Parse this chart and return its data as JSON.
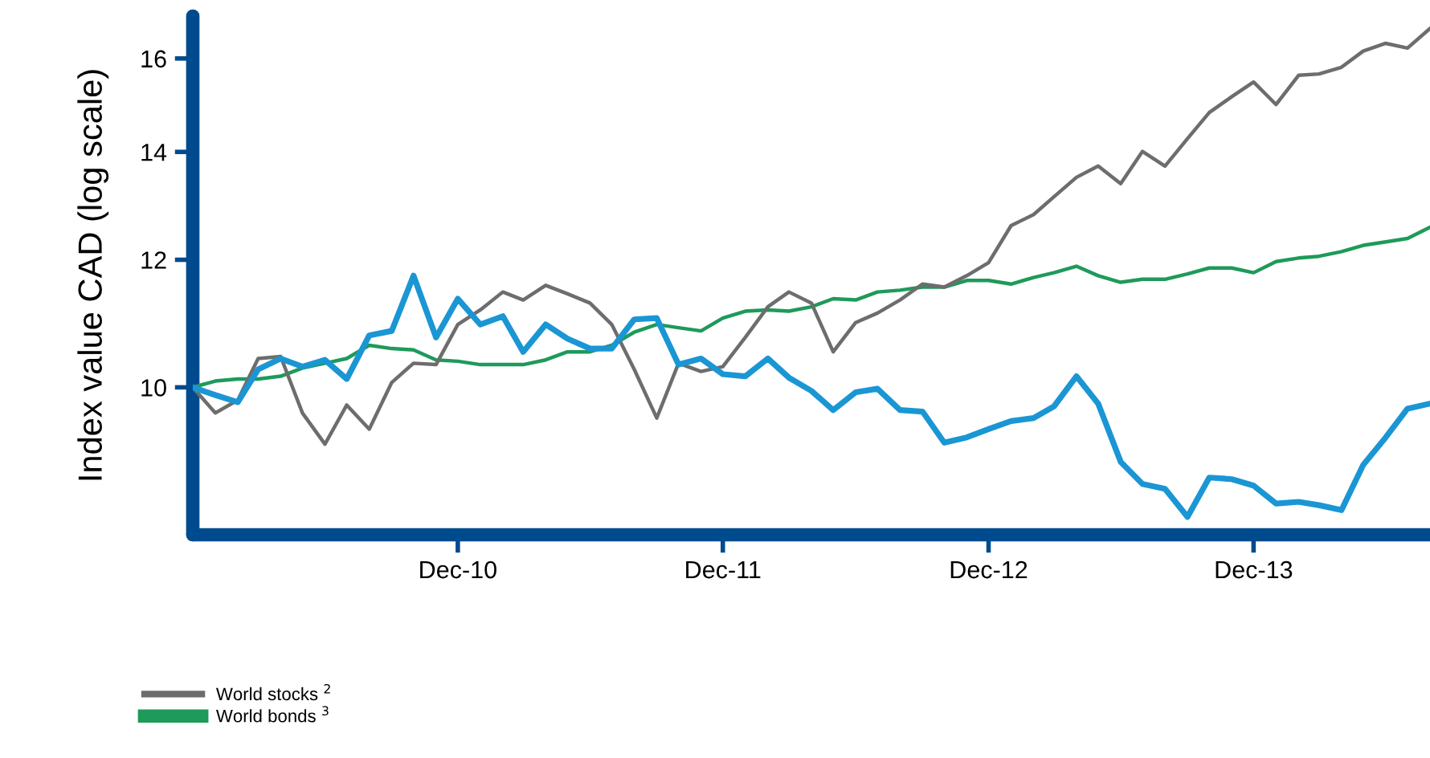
{
  "chart_data": {
    "type": "line",
    "ylabel": "Index value CAD (log scale)",
    "log": true,
    "ylim": [
      8.1,
      17.0
    ],
    "yticks": [
      10,
      12,
      14,
      16
    ],
    "xlim": [
      "2009-12",
      "2014-08"
    ],
    "xticks": [
      {
        "value": "2010-12",
        "label": "Dec-10"
      },
      {
        "value": "2011-12",
        "label": "Dec-11"
      },
      {
        "value": "2012-12",
        "label": "Dec-12"
      },
      {
        "value": "2013-12",
        "label": "Dec-13"
      }
    ],
    "x": [
      "2009-12",
      "2010-01",
      "2010-02",
      "2010-03",
      "2010-04",
      "2010-05",
      "2010-06",
      "2010-07",
      "2010-08",
      "2010-09",
      "2010-10",
      "2010-11",
      "2010-12",
      "2011-01",
      "2011-02",
      "2011-03",
      "2011-04",
      "2011-05",
      "2011-06",
      "2011-07",
      "2011-08",
      "2011-09",
      "2011-10",
      "2011-11",
      "2011-12",
      "2012-01",
      "2012-02",
      "2012-03",
      "2012-04",
      "2012-05",
      "2012-06",
      "2012-07",
      "2012-08",
      "2012-09",
      "2012-10",
      "2012-11",
      "2012-12",
      "2013-01",
      "2013-02",
      "2013-03",
      "2013-04",
      "2013-05",
      "2013-06",
      "2013-07",
      "2013-08",
      "2013-09",
      "2013-10",
      "2013-11",
      "2013-12",
      "2014-01",
      "2014-02",
      "2014-03",
      "2014-04",
      "2014-05",
      "2014-06",
      "2014-07",
      "2014-08"
    ],
    "grid": false,
    "legend": "bottom left",
    "marker": "none",
    "line_style": "solid",
    "series": [
      {
        "color": "#1a96d4",
        "values": [
          10.0,
          9.89,
          9.79,
          10.26,
          10.42,
          10.3,
          10.4,
          10.12,
          10.77,
          10.84,
          11.73,
          10.74,
          11.35,
          10.94,
          11.07,
          10.52,
          10.94,
          10.72,
          10.57,
          10.57,
          11.02,
          11.04,
          10.33,
          10.42,
          10.19,
          10.16,
          10.42,
          10.14,
          9.95,
          9.68,
          9.93,
          9.98,
          9.68,
          9.66,
          9.24,
          9.31,
          9.42,
          9.53,
          9.57,
          9.73,
          10.16,
          9.77,
          8.99,
          8.71,
          8.65,
          8.31,
          8.79,
          8.77,
          8.69,
          8.47,
          8.49,
          8.45,
          8.39,
          8.95,
          9.31,
          9.7,
          9.77
        ]
      },
      {
        "name": "World stocks $^{2}$",
        "color": "#6d6d6d",
        "values": [
          10.0,
          9.64,
          9.82,
          10.42,
          10.45,
          9.64,
          9.22,
          9.75,
          9.42,
          10.07,
          10.35,
          10.33,
          10.94,
          11.17,
          11.46,
          11.33,
          11.57,
          11.43,
          11.28,
          10.94,
          10.26,
          9.57,
          10.35,
          10.23,
          10.3,
          10.74,
          11.22,
          11.46,
          11.28,
          10.52,
          10.97,
          11.12,
          11.33,
          11.59,
          11.54,
          11.73,
          11.95,
          12.6,
          12.8,
          13.13,
          13.5,
          13.72,
          13.38,
          14.01,
          13.72,
          14.27,
          14.81,
          15.15,
          15.47,
          14.98,
          15.62,
          15.65,
          15.8,
          16.17,
          16.35,
          16.24,
          16.7
        ]
      },
      {
        "name": "World bonds $^{3}$",
        "color": "#1e9a5a",
        "values": [
          10.0,
          10.09,
          10.12,
          10.12,
          10.16,
          10.28,
          10.35,
          10.42,
          10.62,
          10.57,
          10.55,
          10.4,
          10.38,
          10.33,
          10.33,
          10.33,
          10.4,
          10.52,
          10.52,
          10.62,
          10.82,
          10.94,
          10.89,
          10.84,
          11.04,
          11.15,
          11.17,
          11.15,
          11.22,
          11.35,
          11.33,
          11.46,
          11.49,
          11.54,
          11.54,
          11.65,
          11.65,
          11.59,
          11.7,
          11.78,
          11.89,
          11.73,
          11.62,
          11.67,
          11.67,
          11.76,
          11.86,
          11.86,
          11.78,
          11.97,
          12.03,
          12.06,
          12.14,
          12.25,
          12.31,
          12.37,
          12.57
        ]
      }
    ]
  }
}
